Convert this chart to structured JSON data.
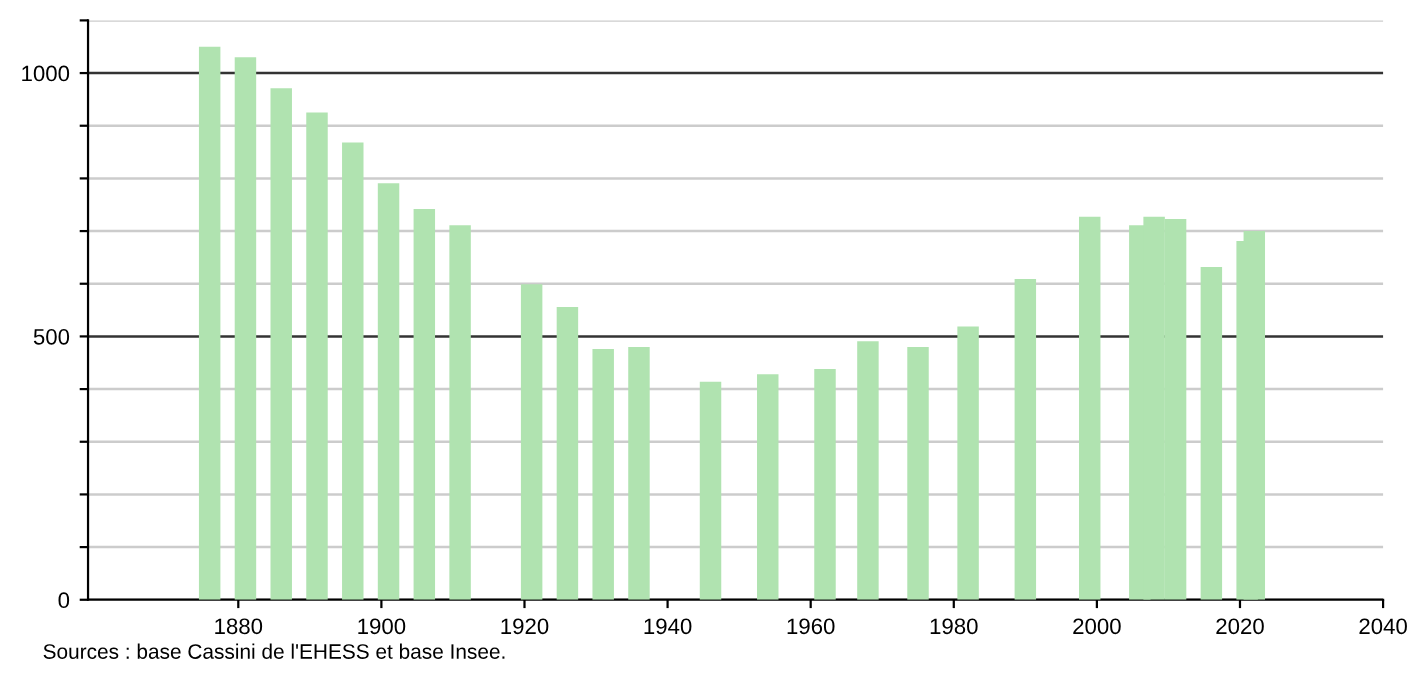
{
  "chart_data": {
    "type": "bar",
    "x": [
      1876,
      1881,
      1886,
      1891,
      1896,
      1901,
      1906,
      1911,
      1921,
      1926,
      1931,
      1936,
      1946,
      1954,
      1962,
      1968,
      1975,
      1982,
      1990,
      1999,
      2006,
      2008,
      2011,
      2016,
      2021,
      2022
    ],
    "values": [
      1050,
      1030,
      971,
      925,
      868,
      791,
      742,
      711,
      599,
      556,
      476,
      480,
      414,
      428,
      438,
      491,
      480,
      519,
      609,
      727,
      711,
      727,
      723,
      632,
      681,
      700
    ],
    "color": "#b0e3b0",
    "xlim": [
      1859,
      2040
    ],
    "xticks": [
      1880,
      1900,
      1920,
      1940,
      1960,
      1980,
      2000,
      2020,
      2040
    ],
    "ylim": [
      0,
      1100
    ],
    "yticks": [
      0,
      {
        "value": 100,
        "label": null
      },
      {
        "value": 200,
        "label": null
      },
      {
        "value": 300,
        "label": null
      },
      {
        "value": 400,
        "label": null
      },
      500,
      {
        "value": 600,
        "label": null
      },
      {
        "value": 700,
        "label": null
      },
      {
        "value": 800,
        "label": null
      },
      {
        "value": 900,
        "label": null
      },
      1000,
      {
        "value": 1100,
        "label": null
      }
    ],
    "grid": "y",
    "annotations": [
      "Sources : base Cassini de l'EHESS et base Insee."
    ]
  }
}
